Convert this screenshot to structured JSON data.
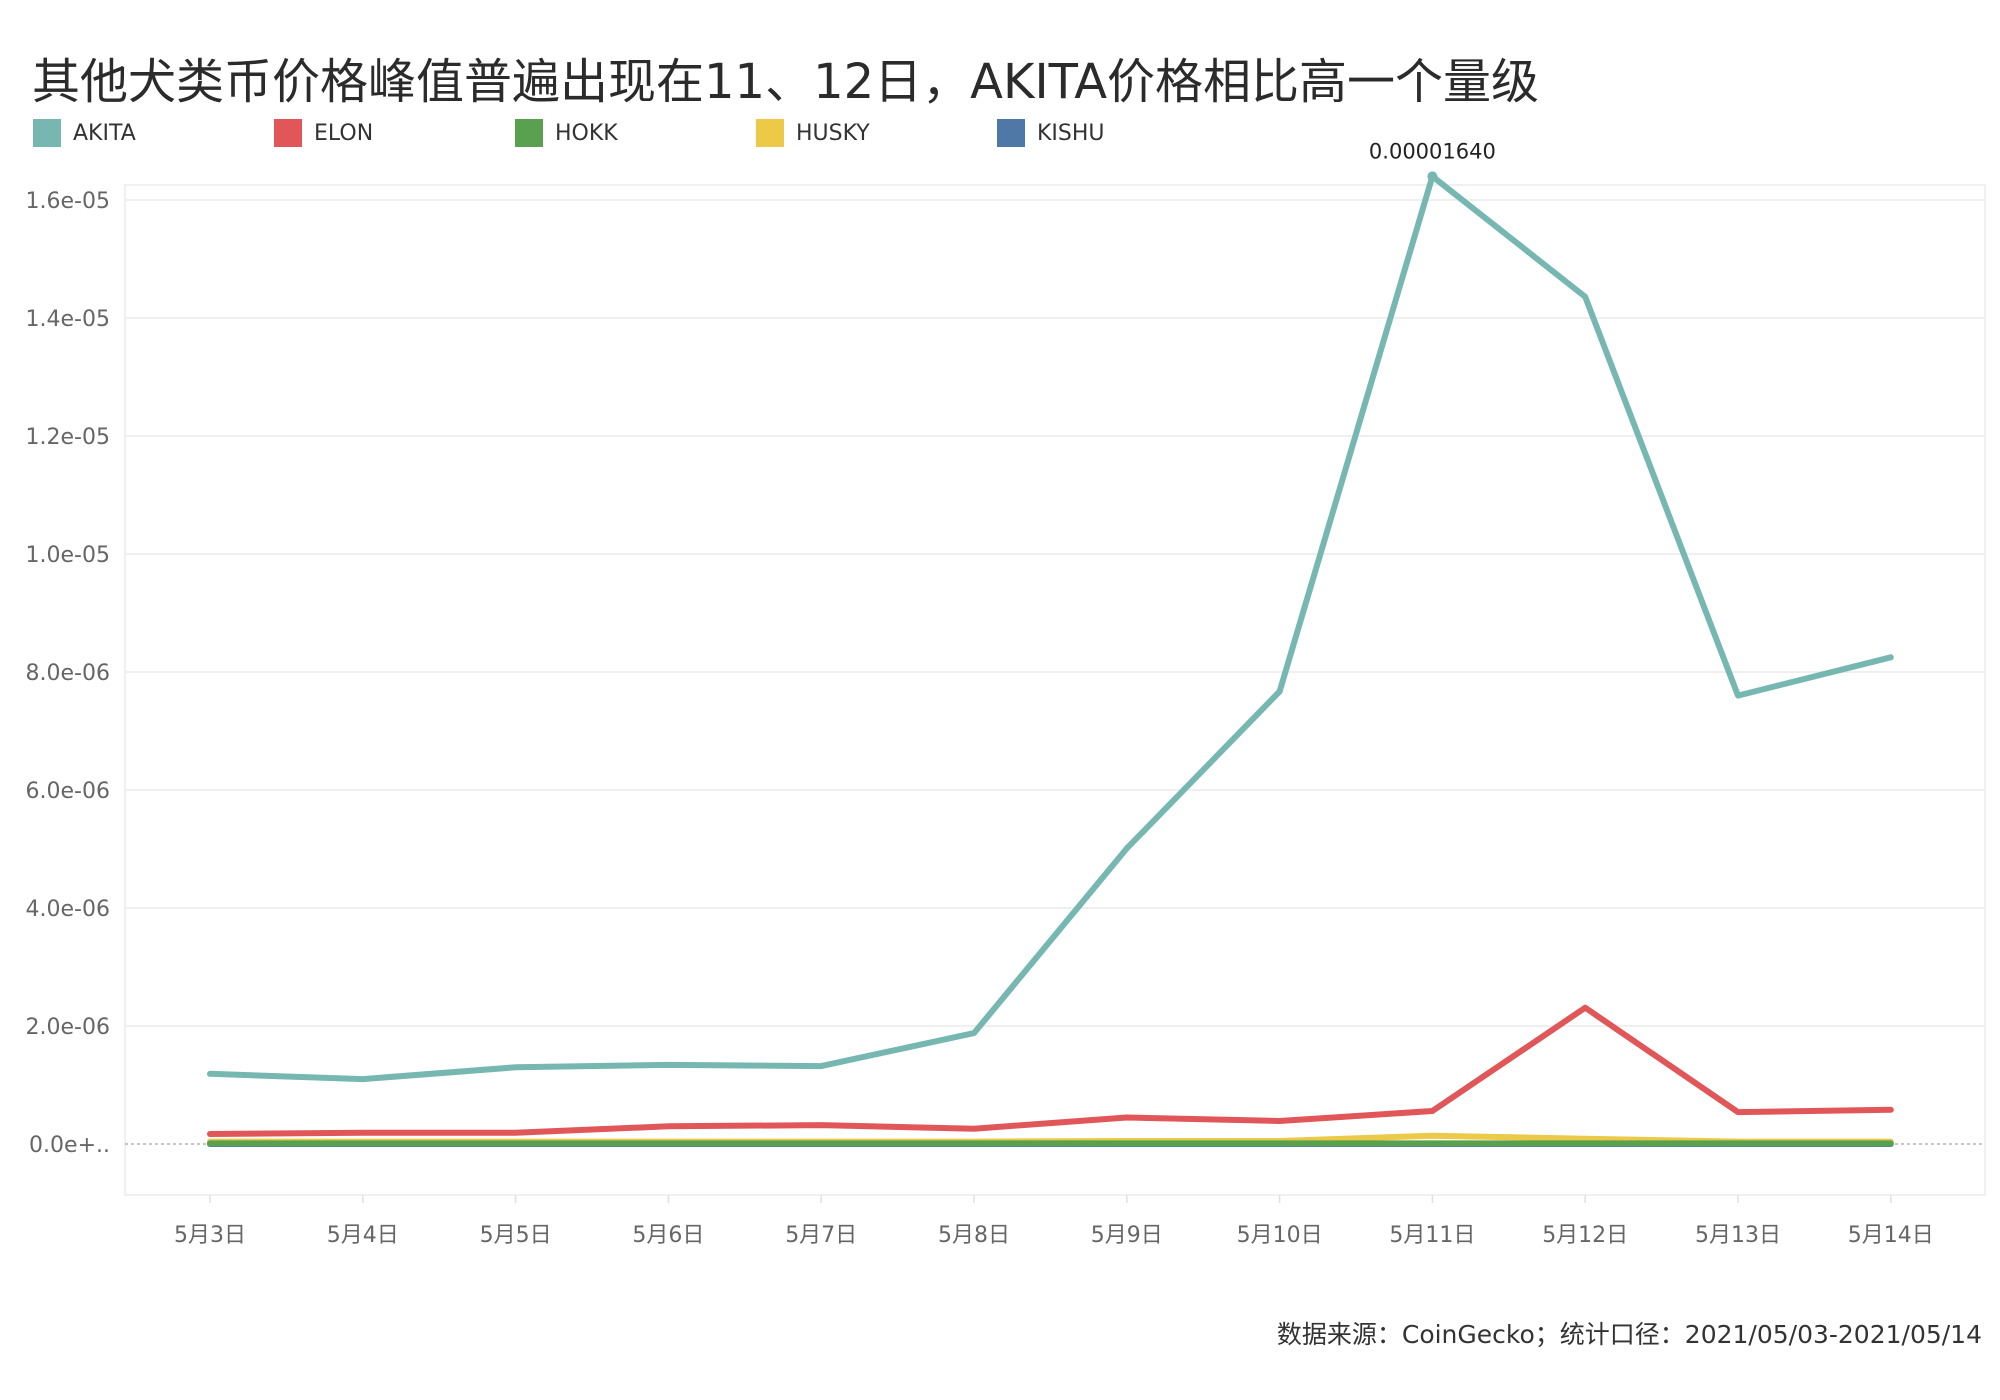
{
  "header": {
    "title": "其他犬类币价格峰值普遍出现在11、12日，AKITA价格相比高一个量级"
  },
  "legend": [
    {
      "name": "AKITA",
      "color": "#76b7b2"
    },
    {
      "name": "ELON",
      "color": "#e15759"
    },
    {
      "name": "HOKK",
      "color": "#59a14f"
    },
    {
      "name": "HUSKY",
      "color": "#edc948"
    },
    {
      "name": "KISHU",
      "color": "#4e79a7"
    }
  ],
  "annotation": {
    "label": "0.00001640",
    "series": "AKITA",
    "category": "5月11日"
  },
  "footer": {
    "source": "数据来源：CoinGecko；统计口径：2021/05/03-2021/05/14"
  },
  "chart_data": {
    "type": "line",
    "title": "其他犬类币价格峰值普遍出现在11、12日，AKITA价格相比高一个量级",
    "xlabel": "",
    "ylabel": "",
    "categories": [
      "5月3日",
      "5月4日",
      "5月5日",
      "5月6日",
      "5月7日",
      "5月8日",
      "5月9日",
      "5月10日",
      "5月11日",
      "5月12日",
      "5月13日",
      "5月14日"
    ],
    "yticks": [
      "0.0e+..",
      "2.0e-06",
      "4.0e-06",
      "6.0e-06",
      "8.0e-06",
      "1.0e-05",
      "1.2e-05",
      "1.4e-05",
      "1.6e-05"
    ],
    "ylim": [
      -9e-07,
      1.67e-05
    ],
    "grid": true,
    "legend_position": "top",
    "series": [
      {
        "name": "AKITA",
        "color": "#76b7b2",
        "values": [
          1.19e-06,
          1.1e-06,
          1.3e-06,
          1.34e-06,
          1.32e-06,
          1.88e-06,
          5.01e-06,
          7.67e-06,
          1.64e-05,
          1.436e-05,
          7.6e-06,
          8.25e-06
        ]
      },
      {
        "name": "ELON",
        "color": "#e15759",
        "values": [
          1.7e-07,
          1.9e-07,
          1.9e-07,
          3e-07,
          3.2e-07,
          2.6e-07,
          4.5e-07,
          3.9e-07,
          5.6e-07,
          2.31e-06,
          5.4e-07,
          5.8e-07
        ]
      },
      {
        "name": "HOKK",
        "color": "#59a14f",
        "values": [
          1e-08,
          1e-08,
          1e-08,
          1e-08,
          1e-08,
          1e-08,
          1e-08,
          1e-08,
          1e-08,
          1e-08,
          1e-08,
          1e-08
        ]
      },
      {
        "name": "HUSKY",
        "color": "#edc948",
        "values": [
          4e-08,
          4e-08,
          4e-08,
          4e-08,
          4e-08,
          4e-08,
          5e-08,
          5e-08,
          1.4e-07,
          9e-08,
          4e-08,
          4e-08
        ]
      },
      {
        "name": "KISHU",
        "color": "#4e79a7",
        "values": [
          0.0,
          0.0,
          0.0,
          0.0,
          0.0,
          0.0,
          0.0,
          0.0,
          0.0,
          0.0,
          0.0,
          0.0
        ]
      }
    ],
    "annotations": [
      {
        "text": "0.00001640",
        "x": "5月11日",
        "y": 1.64e-05
      }
    ]
  }
}
